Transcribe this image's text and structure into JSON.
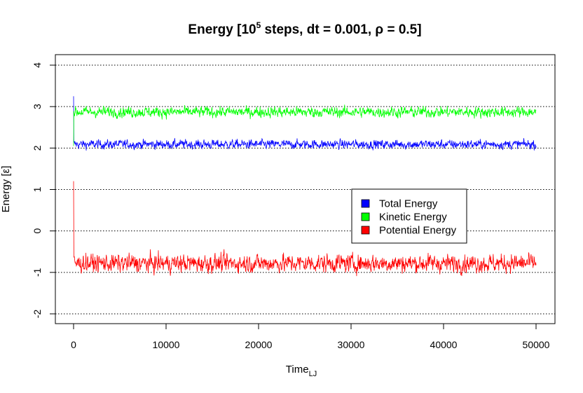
{
  "chart_data": {
    "type": "line",
    "title": {
      "prefix": "Energy [10",
      "superscript": "5",
      "suffix": " steps, dt = 0.001, ρ = 0.5]"
    },
    "xlabel": {
      "main": "Time",
      "subscript": "LJ"
    },
    "ylabel": "Energy [ε]",
    "xlim": [
      0,
      50000
    ],
    "ylim": [
      -2,
      4
    ],
    "xticks": [
      "0",
      "10000",
      "20000",
      "30000",
      "40000",
      "50000"
    ],
    "yticks": [
      "-2",
      "-1",
      "0",
      "1",
      "2",
      "3",
      "4"
    ],
    "grid": "horizontal dotted",
    "legend_position": "center-right",
    "series": [
      {
        "name": "Total Energy",
        "color": "#0000ff",
        "start": 3.25,
        "mean": 2.09,
        "noise": 0.05,
        "x_end": 50000
      },
      {
        "name": "Kinetic Energy",
        "color": "#00ff00",
        "start": 2.05,
        "mean": 2.87,
        "noise": 0.06,
        "x_end": 50000
      },
      {
        "name": "Potential Energy",
        "color": "#ff0000",
        "start": 1.2,
        "mean": -0.78,
        "noise": 0.1,
        "x_end": 50000
      }
    ]
  }
}
